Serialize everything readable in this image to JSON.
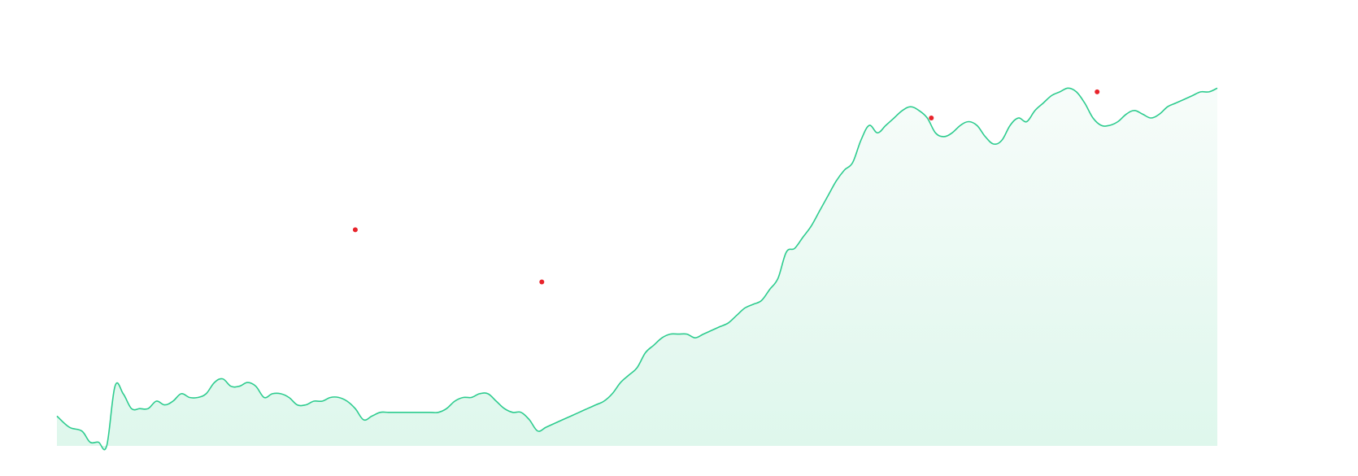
{
  "chart_data": {
    "type": "area",
    "title": "",
    "xlabel": "",
    "ylabel": "",
    "grid": false,
    "legend": "none",
    "xlim": [
      0,
      280
    ],
    "ylim": [
      0,
      100
    ],
    "colors": {
      "line": "#2ecc8f",
      "fill_top": "#f7fcfa",
      "fill_bottom": "#def7ec",
      "marker": "#e8232b"
    },
    "series": [
      {
        "values": [
          8,
          5,
          1,
          0,
          16,
          10,
          6,
          11,
          13,
          12,
          8,
          11,
          15,
          17,
          19,
          19,
          18,
          16,
          15,
          11,
          9,
          12,
          8,
          7,
          9,
          13,
          16,
          17,
          11,
          6,
          4,
          5,
          7,
          8,
          8,
          8,
          8,
          7,
          7,
          7,
          8,
          9,
          10,
          12,
          11,
          12,
          11,
          10,
          10,
          7,
          5,
          2,
          1,
          3,
          4,
          4,
          5,
          4,
          4,
          6,
          6,
          6,
          7,
          8,
          10,
          14,
          18,
          21,
          24,
          27,
          29,
          30,
          30,
          28,
          29,
          28,
          27,
          28,
          29,
          30,
          31,
          32,
          33,
          34,
          35,
          38,
          45,
          53,
          55,
          56,
          58,
          66,
          71,
          76,
          79,
          80,
          82,
          85,
          92,
          93,
          95,
          92,
          93,
          94,
          95,
          94,
          88,
          86,
          86,
          87,
          88,
          85,
          84,
          84,
          82,
          80,
          79,
          80,
          82,
          84,
          85,
          86,
          87,
          88,
          91,
          93,
          95,
          95,
          95,
          91,
          87,
          87,
          90
        ],
        "points": [
          [
            0,
            8
          ],
          [
            3,
            5
          ],
          [
            6,
            4
          ],
          [
            8,
            1
          ],
          [
            10,
            1
          ],
          [
            12,
            0
          ],
          [
            14,
            16
          ],
          [
            16,
            14
          ],
          [
            18,
            10
          ],
          [
            20,
            10
          ],
          [
            22,
            10
          ],
          [
            24,
            12
          ],
          [
            26,
            11
          ],
          [
            28,
            12
          ],
          [
            30,
            14
          ],
          [
            32,
            13
          ],
          [
            34,
            13
          ],
          [
            36,
            14
          ],
          [
            38,
            17
          ],
          [
            40,
            18
          ],
          [
            42,
            16
          ],
          [
            44,
            16
          ],
          [
            46,
            17
          ],
          [
            48,
            16
          ],
          [
            50,
            13
          ],
          [
            52,
            14
          ],
          [
            54,
            14
          ],
          [
            56,
            13
          ],
          [
            58,
            11
          ],
          [
            60,
            11
          ],
          [
            62,
            12
          ],
          [
            64,
            12
          ],
          [
            66,
            13
          ],
          [
            68,
            13
          ],
          [
            70,
            12
          ],
          [
            72,
            10
          ],
          [
            74,
            7
          ],
          [
            76,
            8
          ],
          [
            78,
            9
          ],
          [
            80,
            9
          ],
          [
            82,
            9
          ],
          [
            84,
            9
          ],
          [
            86,
            9
          ],
          [
            88,
            9
          ],
          [
            90,
            9
          ],
          [
            92,
            9
          ],
          [
            94,
            10
          ],
          [
            96,
            12
          ],
          [
            98,
            13
          ],
          [
            100,
            13
          ],
          [
            102,
            14
          ],
          [
            104,
            14
          ],
          [
            106,
            12
          ],
          [
            108,
            10
          ],
          [
            110,
            9
          ],
          [
            112,
            9
          ],
          [
            114,
            7
          ],
          [
            116,
            4
          ],
          [
            118,
            5
          ],
          [
            120,
            6
          ],
          [
            122,
            7
          ],
          [
            124,
            8
          ],
          [
            126,
            9
          ],
          [
            128,
            10
          ],
          [
            130,
            11
          ],
          [
            132,
            12
          ],
          [
            134,
            14
          ],
          [
            136,
            17
          ],
          [
            138,
            19
          ],
          [
            140,
            21
          ],
          [
            142,
            25
          ],
          [
            144,
            27
          ],
          [
            146,
            29
          ],
          [
            148,
            30
          ],
          [
            150,
            30
          ],
          [
            152,
            30
          ],
          [
            154,
            29
          ],
          [
            156,
            30
          ],
          [
            158,
            31
          ],
          [
            160,
            32
          ],
          [
            162,
            33
          ],
          [
            164,
            35
          ],
          [
            166,
            37
          ],
          [
            168,
            38
          ],
          [
            170,
            39
          ],
          [
            172,
            42
          ],
          [
            174,
            45
          ],
          [
            176,
            52
          ],
          [
            178,
            53
          ],
          [
            180,
            56
          ],
          [
            182,
            59
          ],
          [
            184,
            63
          ],
          [
            186,
            67
          ],
          [
            188,
            71
          ],
          [
            190,
            74
          ],
          [
            192,
            76
          ],
          [
            194,
            82
          ],
          [
            196,
            86
          ],
          [
            198,
            84
          ],
          [
            200,
            86
          ],
          [
            202,
            88
          ],
          [
            204,
            90
          ],
          [
            206,
            91
          ],
          [
            208,
            90
          ],
          [
            210,
            88
          ],
          [
            212,
            84
          ],
          [
            214,
            83
          ],
          [
            216,
            84
          ],
          [
            218,
            86
          ],
          [
            220,
            87
          ],
          [
            222,
            86
          ],
          [
            224,
            83
          ],
          [
            226,
            81
          ],
          [
            228,
            82
          ],
          [
            230,
            86
          ],
          [
            232,
            88
          ],
          [
            234,
            87
          ],
          [
            236,
            90
          ],
          [
            238,
            92
          ],
          [
            240,
            94
          ],
          [
            242,
            95
          ],
          [
            244,
            96
          ],
          [
            246,
            95
          ],
          [
            248,
            92
          ],
          [
            250,
            88
          ],
          [
            252,
            86
          ],
          [
            254,
            86
          ],
          [
            256,
            87
          ],
          [
            258,
            89
          ],
          [
            260,
            90
          ],
          [
            262,
            89
          ],
          [
            264,
            88
          ],
          [
            266,
            89
          ],
          [
            268,
            91
          ],
          [
            270,
            92
          ],
          [
            272,
            93
          ],
          [
            274,
            94
          ],
          [
            276,
            95
          ],
          [
            278,
            95
          ],
          [
            280,
            96
          ]
        ]
      }
    ],
    "markers": [
      [
        72,
        58
      ],
      [
        117,
        44
      ],
      [
        211,
        88
      ],
      [
        251,
        95
      ]
    ]
  }
}
